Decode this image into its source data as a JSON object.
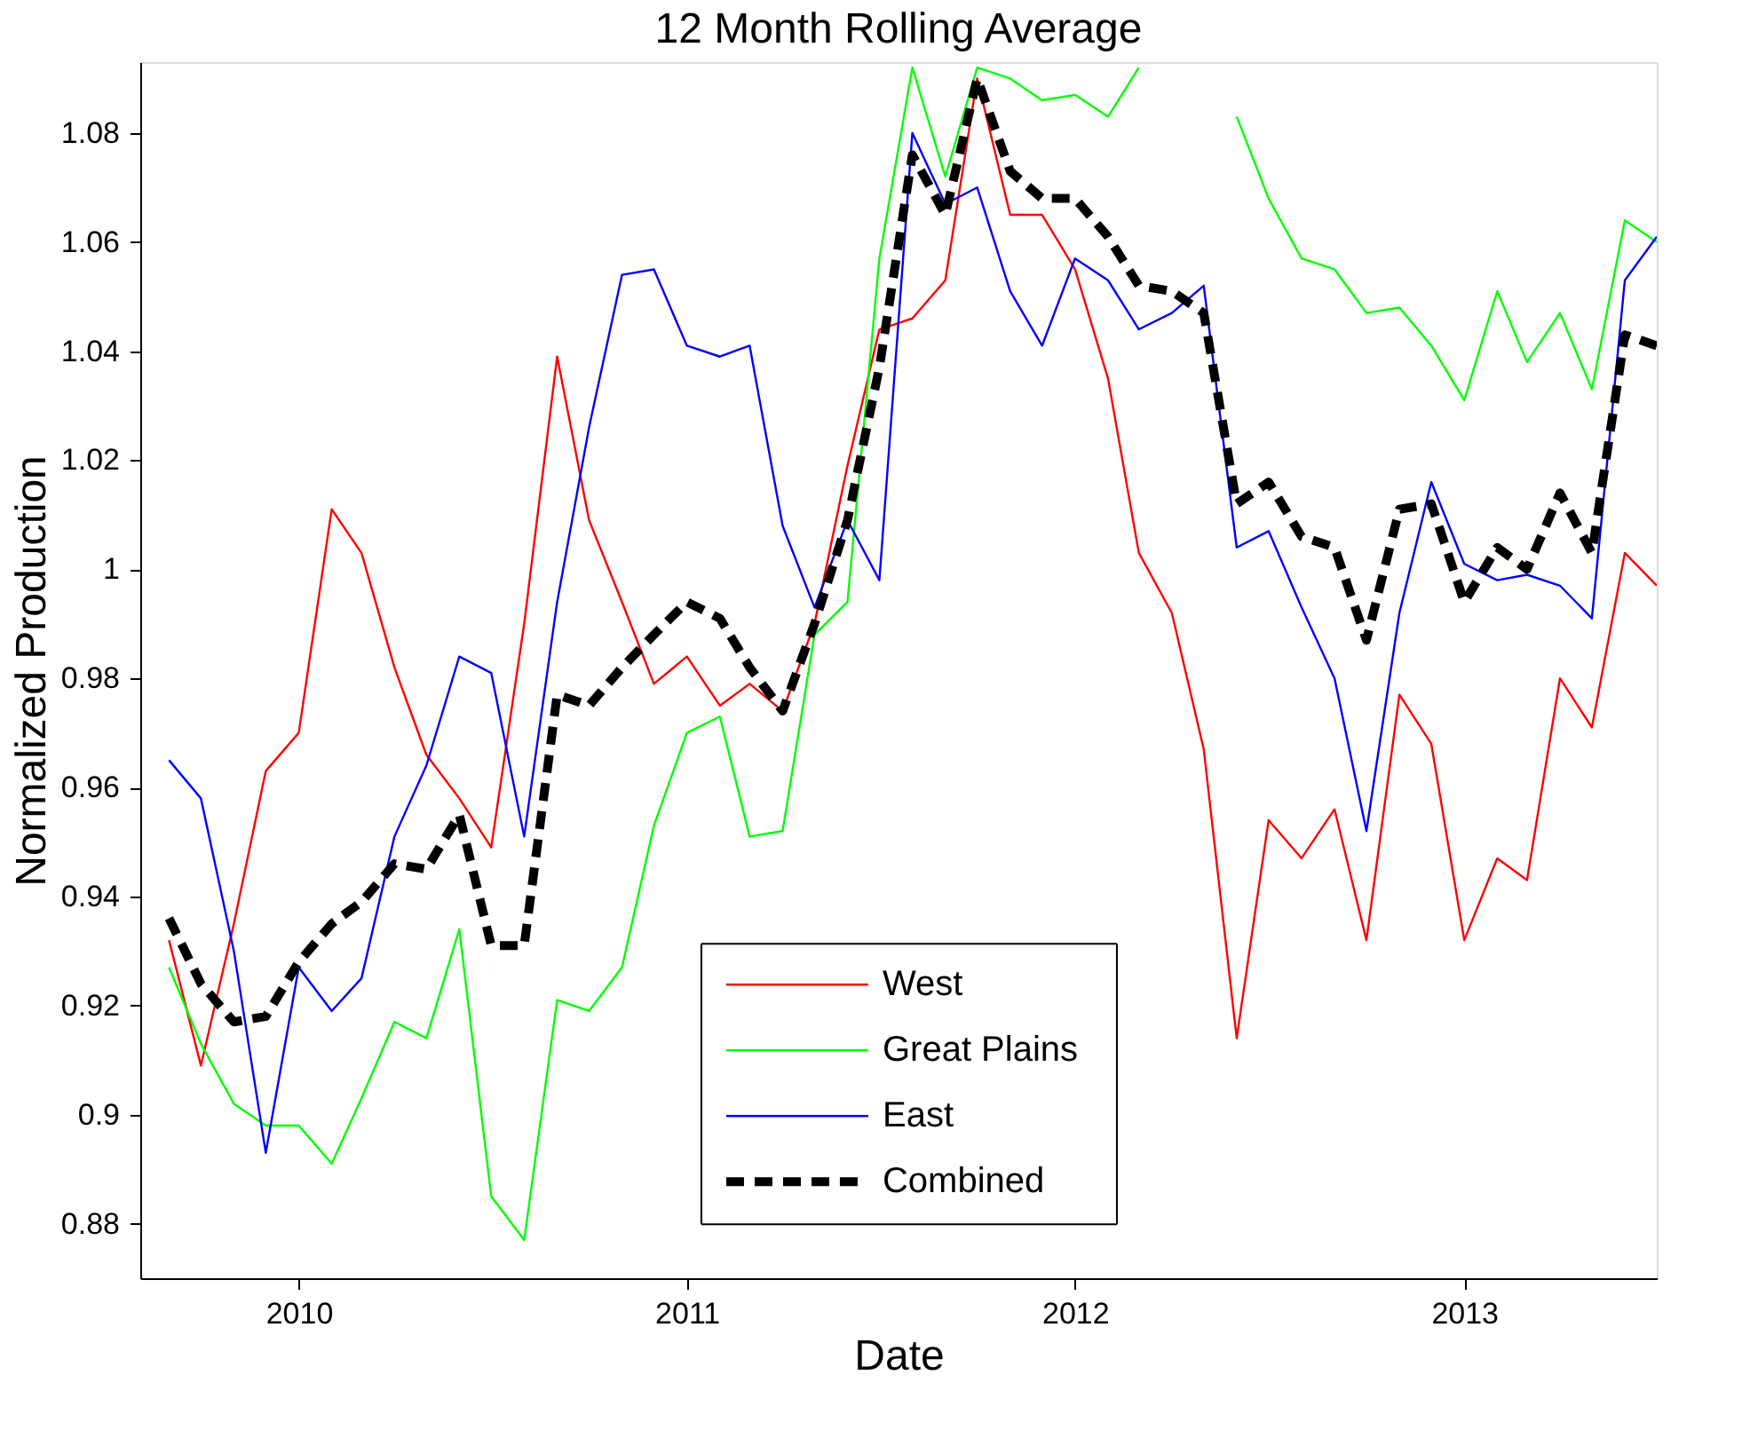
{
  "chart_data": {
    "type": "line",
    "title": "12 Month Rolling Average",
    "xlabel": "Date",
    "ylabel": "Normalized Production",
    "x": [
      "2009-09",
      "2009-10",
      "2009-11",
      "2009-12",
      "2010-01",
      "2010-02",
      "2010-03",
      "2010-04",
      "2010-05",
      "2010-06",
      "2010-07",
      "2010-08",
      "2010-09",
      "2010-10",
      "2010-11",
      "2010-12",
      "2011-01",
      "2011-02",
      "2011-03",
      "2011-04",
      "2011-05",
      "2011-06",
      "2011-07",
      "2011-08",
      "2011-09",
      "2011-10",
      "2011-11",
      "2011-12",
      "2012-01",
      "2012-02",
      "2012-03",
      "2012-04",
      "2012-05",
      "2012-06",
      "2012-07",
      "2012-08",
      "2012-09",
      "2012-10",
      "2012-11",
      "2012-12",
      "2013-01",
      "2013-02",
      "2013-03",
      "2013-04",
      "2013-05",
      "2013-06",
      "2013-07"
    ],
    "series": [
      {
        "name": "West",
        "color": "#ff0000",
        "line_style": "solid",
        "values": [
          0.932,
          0.909,
          0.935,
          0.963,
          0.97,
          1.011,
          1.003,
          0.982,
          0.966,
          0.958,
          0.949,
          0.99,
          1.039,
          1.009,
          0.994,
          0.979,
          0.984,
          0.975,
          0.979,
          0.974,
          0.99,
          1.019,
          1.044,
          1.046,
          1.053,
          1.09,
          1.065,
          1.065,
          1.055,
          1.035,
          1.003,
          0.992,
          0.967,
          0.914,
          0.954,
          0.947,
          0.956,
          0.932,
          0.977,
          0.968,
          0.932,
          0.947,
          0.943,
          0.98,
          0.971,
          1.003,
          0.997
        ]
      },
      {
        "name": "Great Plains",
        "color": "#00ff00",
        "line_style": "solid",
        "values": [
          0.927,
          0.913,
          0.902,
          0.898,
          0.898,
          0.891,
          0.903,
          0.917,
          0.914,
          0.934,
          0.885,
          0.877,
          0.921,
          0.919,
          0.927,
          0.953,
          0.97,
          0.973,
          0.951,
          0.952,
          0.988,
          0.994,
          1.057,
          1.092,
          1.072,
          1.092,
          1.09,
          1.086,
          1.087,
          1.083,
          1.092,
          null,
          null,
          1.083,
          1.068,
          1.057,
          1.055,
          1.047,
          1.048,
          1.041,
          1.031,
          1.051,
          1.038,
          1.047,
          1.033,
          1.064,
          1.06
        ]
      },
      {
        "name": "East",
        "color": "#0000ff",
        "line_style": "solid",
        "values": [
          0.965,
          0.958,
          0.93,
          0.893,
          0.927,
          0.919,
          0.925,
          0.951,
          0.964,
          0.984,
          0.981,
          0.951,
          0.994,
          1.026,
          1.054,
          1.055,
          1.041,
          1.039,
          1.041,
          1.008,
          0.993,
          1.009,
          0.998,
          1.08,
          1.067,
          1.07,
          1.051,
          1.041,
          1.057,
          1.053,
          1.044,
          1.047,
          1.052,
          1.004,
          1.007,
          0.993,
          0.98,
          0.952,
          0.992,
          1.016,
          1.001,
          0.998,
          0.999,
          0.997,
          0.991,
          1.053,
          1.061
        ]
      },
      {
        "name": "Combined",
        "color": "#000000",
        "line_style": "dashed",
        "values": [
          0.936,
          0.924,
          0.917,
          0.918,
          0.928,
          0.935,
          0.939,
          0.946,
          0.945,
          0.955,
          0.931,
          0.931,
          0.977,
          0.975,
          0.982,
          0.988,
          0.994,
          0.991,
          0.982,
          0.974,
          0.99,
          1.009,
          1.037,
          1.076,
          1.065,
          1.09,
          1.073,
          1.068,
          1.068,
          1.061,
          1.052,
          1.051,
          1.047,
          1.012,
          1.016,
          1.006,
          1.004,
          0.987,
          1.011,
          1.012,
          0.994,
          1.004,
          1.0,
          1.014,
          1.003,
          1.043,
          1.041
        ]
      }
    ],
    "xlim": [
      "2009-08-05",
      "2013-07-01"
    ],
    "xticks": [
      "2010",
      "2011",
      "2012",
      "2013"
    ],
    "ylim": [
      0.87,
      1.093
    ],
    "yticks": [
      0.88,
      0.9,
      0.92,
      0.94,
      0.96,
      0.98,
      1,
      1.02,
      1.04,
      1.06,
      1.08
    ],
    "grid": false,
    "legend": "bottom",
    "marker": "none"
  }
}
